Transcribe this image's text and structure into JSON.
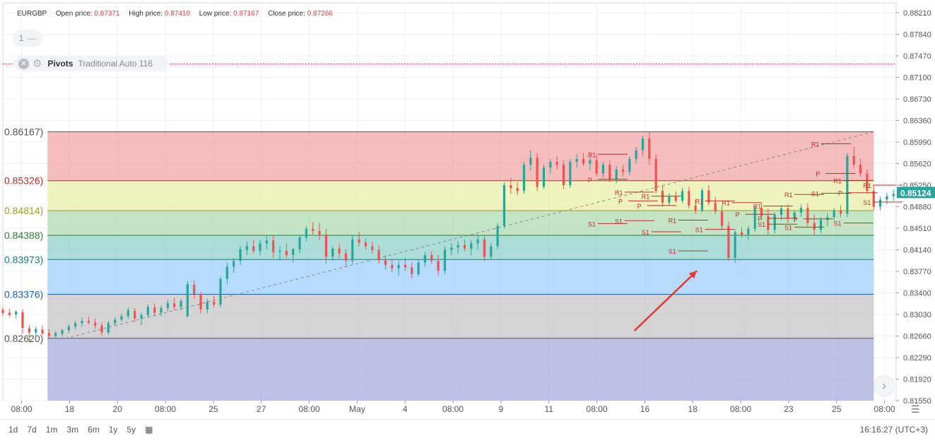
{
  "header": {
    "symbol": "EURGBP",
    "open_label": "Open price:",
    "open_value": "0.87371",
    "high_label": "High price:",
    "high_value": "0.87410",
    "low_label": "Low price:",
    "low_value": "0.87167",
    "close_label": "Close price:",
    "close_value": "0.87266"
  },
  "pane_pill": {
    "label": "1",
    "icon": "minus-icon"
  },
  "indicator": {
    "name": "Pivots",
    "args": "Traditional Auto 116",
    "close_icon": "close-icon",
    "settings_icon": "gear-icon"
  },
  "time_ranges": [
    "1d",
    "7d",
    "1m",
    "3m",
    "6m",
    "1y",
    "5y"
  ],
  "calendar_icon": "calendar-icon",
  "clock": "16:16:27 (UTC+3)",
  "scroll_icon": "chevron-right-icon",
  "axis_settings_icon": "sliders-icon",
  "colors": {
    "up": "#26a69a",
    "down": "#ef5350",
    "band_red": "#ef9a9a",
    "band_yellow": "#e6ee9c",
    "band_green": "#a5d6a7",
    "band_teal": "#80cbc4",
    "band_blue": "#90caf9",
    "band_gray": "#bdbdbd",
    "band_purple": "#9fa8da",
    "arrow": "#e53935",
    "pivot_line": "#c62828"
  },
  "chart_data": {
    "type": "candlestick",
    "symbol": "EURGBP",
    "y_ticks": [
      "0.88210",
      "0.87840",
      "0.87470",
      "0.87100",
      "0.86730",
      "0.86360",
      "0.85990",
      "0.85620",
      "0.85250",
      "0.84880",
      "0.84510",
      "0.84140",
      "0.83770",
      "0.83400",
      "0.83030",
      "0.82660",
      "0.82290",
      "0.81920",
      "0.81550"
    ],
    "ylim": [
      0.8155,
      0.8821
    ],
    "x_ticks": [
      "08:00",
      "18",
      "20",
      "08:00",
      "25",
      "27",
      "08:00",
      "May",
      "4",
      "08:00",
      "9",
      "11",
      "08:00",
      "16",
      "18",
      "08:00",
      "23",
      "25",
      "08:00"
    ],
    "current_price": "0.85124",
    "high_line": 0.8733,
    "fib_levels": [
      {
        "label": "0.86167)",
        "value": 0.86167,
        "color": "#555555"
      },
      {
        "label": "0.85326)",
        "value": 0.85326,
        "color": "#c62828"
      },
      {
        "label": "0.84814)",
        "value": 0.84814,
        "color": "#9e9d24"
      },
      {
        "label": "0.84388)",
        "value": 0.84388,
        "color": "#2e7d32"
      },
      {
        "label": "0.83973)",
        "value": 0.83973,
        "color": "#00897b"
      },
      {
        "label": "0.83376)",
        "value": 0.83376,
        "color": "#1565c0"
      },
      {
        "label": "0.82620)",
        "value": 0.8262,
        "color": "#555555"
      }
    ],
    "pivot_labels": [
      {
        "text": "R1",
        "x": 0.655,
        "value": 0.8578
      },
      {
        "text": "P",
        "x": 0.655,
        "value": 0.8535
      },
      {
        "text": "S1",
        "x": 0.655,
        "value": 0.8459
      },
      {
        "text": "R1",
        "x": 0.685,
        "value": 0.8513
      },
      {
        "text": "P",
        "x": 0.689,
        "value": 0.8498
      },
      {
        "text": "S1",
        "x": 0.685,
        "value": 0.8464
      },
      {
        "text": "R1",
        "x": 0.715,
        "value": 0.8506
      },
      {
        "text": "P",
        "x": 0.71,
        "value": 0.849
      },
      {
        "text": "S1",
        "x": 0.715,
        "value": 0.8445
      },
      {
        "text": "R1",
        "x": 0.745,
        "value": 0.8465
      },
      {
        "text": "S1",
        "x": 0.745,
        "value": 0.8412
      },
      {
        "text": "R1",
        "x": 0.775,
        "value": 0.8498
      },
      {
        "text": "S1",
        "x": 0.775,
        "value": 0.8449
      },
      {
        "text": "R1",
        "x": 0.805,
        "value": 0.8495
      },
      {
        "text": "P",
        "x": 0.82,
        "value": 0.8475
      },
      {
        "text": "R1",
        "x": 0.84,
        "value": 0.8489
      },
      {
        "text": "P",
        "x": 0.845,
        "value": 0.8468
      },
      {
        "text": "S1",
        "x": 0.845,
        "value": 0.8458
      },
      {
        "text": "S1",
        "x": 0.875,
        "value": 0.8453
      },
      {
        "text": "R1",
        "x": 0.875,
        "value": 0.8509
      },
      {
        "text": "P",
        "x": 0.885,
        "value": 0.8467
      },
      {
        "text": "R1",
        "x": 0.905,
        "value": 0.8596
      },
      {
        "text": "S1",
        "x": 0.905,
        "value": 0.8511
      },
      {
        "text": "P",
        "x": 0.91,
        "value": 0.8545
      },
      {
        "text": "R1",
        "x": 0.93,
        "value": 0.8533
      },
      {
        "text": "P",
        "x": 0.935,
        "value": 0.8512
      },
      {
        "text": "S1",
        "x": 0.93,
        "value": 0.846
      },
      {
        "text": "R1",
        "x": 0.963,
        "value": 0.8525
      },
      {
        "text": "S1",
        "x": 0.963,
        "value": 0.8496
      }
    ],
    "candles": [
      [
        0.8311,
        0.8315,
        0.83,
        0.8305
      ],
      [
        0.8306,
        0.8312,
        0.8298,
        0.8302
      ],
      [
        0.8303,
        0.831,
        0.8296,
        0.8308
      ],
      [
        0.8307,
        0.8312,
        0.827,
        0.828
      ],
      [
        0.8279,
        0.8285,
        0.8255,
        0.8272
      ],
      [
        0.8272,
        0.8282,
        0.8265,
        0.8278
      ],
      [
        0.8277,
        0.8284,
        0.8268,
        0.827
      ],
      [
        0.8271,
        0.8278,
        0.8263,
        0.8266
      ],
      [
        0.8266,
        0.8274,
        0.8261,
        0.8271
      ],
      [
        0.827,
        0.8278,
        0.8265,
        0.8276
      ],
      [
        0.8276,
        0.8286,
        0.8271,
        0.8282
      ],
      [
        0.8282,
        0.8292,
        0.8277,
        0.8288
      ],
      [
        0.8288,
        0.8298,
        0.8282,
        0.8292
      ],
      [
        0.8292,
        0.83,
        0.8286,
        0.8289
      ],
      [
        0.8289,
        0.8296,
        0.8278,
        0.8284
      ],
      [
        0.8284,
        0.829,
        0.8266,
        0.8272
      ],
      [
        0.8272,
        0.8292,
        0.8268,
        0.8288
      ],
      [
        0.8288,
        0.8298,
        0.8284,
        0.8294
      ],
      [
        0.8294,
        0.8304,
        0.829,
        0.83
      ],
      [
        0.83,
        0.8315,
        0.8295,
        0.831
      ],
      [
        0.8309,
        0.8314,
        0.829,
        0.8296
      ],
      [
        0.8296,
        0.8306,
        0.8285,
        0.8302
      ],
      [
        0.8302,
        0.832,
        0.8298,
        0.8316
      ],
      [
        0.8315,
        0.8322,
        0.83,
        0.8306
      ],
      [
        0.8306,
        0.8318,
        0.83,
        0.8314
      ],
      [
        0.8314,
        0.8328,
        0.8308,
        0.8322
      ],
      [
        0.8322,
        0.8332,
        0.831,
        0.8316
      ],
      [
        0.8316,
        0.833,
        0.831,
        0.8326
      ],
      [
        0.83,
        0.836,
        0.8298,
        0.8355
      ],
      [
        0.8354,
        0.8362,
        0.833,
        0.8338
      ],
      [
        0.8338,
        0.8342,
        0.8305,
        0.8312
      ],
      [
        0.8312,
        0.833,
        0.8305,
        0.8325
      ],
      [
        0.8325,
        0.8335,
        0.8315,
        0.832
      ],
      [
        0.832,
        0.8368,
        0.8315,
        0.8364
      ],
      [
        0.8364,
        0.8392,
        0.8355,
        0.8385
      ],
      [
        0.8385,
        0.84,
        0.8375,
        0.8395
      ],
      [
        0.8395,
        0.842,
        0.8388,
        0.8415
      ],
      [
        0.8414,
        0.8428,
        0.8405,
        0.842
      ],
      [
        0.842,
        0.8432,
        0.8408,
        0.8412
      ],
      [
        0.8412,
        0.843,
        0.8405,
        0.8425
      ],
      [
        0.8425,
        0.8438,
        0.8415,
        0.843
      ],
      [
        0.843,
        0.844,
        0.84,
        0.841
      ],
      [
        0.841,
        0.842,
        0.8395,
        0.8412
      ],
      [
        0.8412,
        0.8425,
        0.84,
        0.8405
      ],
      [
        0.8405,
        0.8418,
        0.8392,
        0.8415
      ],
      [
        0.8415,
        0.844,
        0.8408,
        0.8435
      ],
      [
        0.8435,
        0.8455,
        0.8428,
        0.845
      ],
      [
        0.845,
        0.8462,
        0.844,
        0.8446
      ],
      [
        0.8446,
        0.846,
        0.843,
        0.844
      ],
      [
        0.844,
        0.845,
        0.839,
        0.8402
      ],
      [
        0.8402,
        0.842,
        0.8395,
        0.8416
      ],
      [
        0.8416,
        0.8425,
        0.84,
        0.8408
      ],
      [
        0.8408,
        0.8415,
        0.8385,
        0.8395
      ],
      [
        0.8395,
        0.844,
        0.839,
        0.8432
      ],
      [
        0.8432,
        0.8445,
        0.842,
        0.8426
      ],
      [
        0.8426,
        0.8434,
        0.8415,
        0.842
      ],
      [
        0.842,
        0.8428,
        0.8408,
        0.8414
      ],
      [
        0.8414,
        0.8422,
        0.839,
        0.8396
      ],
      [
        0.8396,
        0.8405,
        0.838,
        0.8388
      ],
      [
        0.8388,
        0.8398,
        0.8375,
        0.8382
      ],
      [
        0.8382,
        0.8395,
        0.837,
        0.8388
      ],
      [
        0.8388,
        0.84,
        0.8378,
        0.8384
      ],
      [
        0.8384,
        0.8392,
        0.8365,
        0.8372
      ],
      [
        0.8372,
        0.8398,
        0.8368,
        0.8392
      ],
      [
        0.8392,
        0.841,
        0.8385,
        0.8405
      ],
      [
        0.8405,
        0.8412,
        0.839,
        0.8395
      ],
      [
        0.8395,
        0.8405,
        0.837,
        0.8378
      ],
      [
        0.8378,
        0.842,
        0.8372,
        0.8414
      ],
      [
        0.8414,
        0.8425,
        0.8405,
        0.8418
      ],
      [
        0.8418,
        0.8428,
        0.8408,
        0.8422
      ],
      [
        0.8422,
        0.8432,
        0.8412,
        0.8416
      ],
      [
        0.8416,
        0.843,
        0.8405,
        0.8425
      ],
      [
        0.8425,
        0.844,
        0.8415,
        0.8432
      ],
      [
        0.8432,
        0.844,
        0.8395,
        0.8402
      ],
      [
        0.8402,
        0.8425,
        0.8398,
        0.842
      ],
      [
        0.842,
        0.846,
        0.8415,
        0.8455
      ],
      [
        0.8455,
        0.853,
        0.845,
        0.8525
      ],
      [
        0.8525,
        0.8538,
        0.851,
        0.852
      ],
      [
        0.852,
        0.853,
        0.8508,
        0.8515
      ],
      [
        0.8515,
        0.8565,
        0.851,
        0.856
      ],
      [
        0.856,
        0.8585,
        0.855,
        0.8572
      ],
      [
        0.8572,
        0.858,
        0.8515,
        0.8522
      ],
      [
        0.8522,
        0.856,
        0.8518,
        0.8555
      ],
      [
        0.8555,
        0.857,
        0.8545,
        0.8565
      ],
      [
        0.8565,
        0.8575,
        0.8552,
        0.856
      ],
      [
        0.856,
        0.8568,
        0.8518,
        0.8525
      ],
      [
        0.8525,
        0.857,
        0.852,
        0.8565
      ],
      [
        0.8565,
        0.8578,
        0.8555,
        0.857
      ],
      [
        0.857,
        0.858,
        0.8558,
        0.8562
      ],
      [
        0.8562,
        0.8575,
        0.855,
        0.8568
      ],
      [
        0.8568,
        0.8578,
        0.854,
        0.8545
      ],
      [
        0.8545,
        0.8565,
        0.8538,
        0.856
      ],
      [
        0.856,
        0.8568,
        0.853,
        0.8535
      ],
      [
        0.8535,
        0.8558,
        0.8528,
        0.8552
      ],
      [
        0.8552,
        0.856,
        0.854,
        0.8548
      ],
      [
        0.8548,
        0.8575,
        0.8542,
        0.857
      ],
      [
        0.857,
        0.859,
        0.8562,
        0.8585
      ],
      [
        0.8585,
        0.861,
        0.8575,
        0.8605
      ],
      [
        0.8605,
        0.8617,
        0.856,
        0.857
      ],
      [
        0.857,
        0.8578,
        0.851,
        0.8515
      ],
      [
        0.8515,
        0.8525,
        0.8488,
        0.8495
      ],
      [
        0.8495,
        0.8512,
        0.849,
        0.8505
      ],
      [
        0.8505,
        0.8515,
        0.8495,
        0.8498
      ],
      [
        0.8498,
        0.852,
        0.8494,
        0.8515
      ],
      [
        0.8515,
        0.8522,
        0.8485,
        0.849
      ],
      [
        0.849,
        0.85,
        0.8475,
        0.8482
      ],
      [
        0.8482,
        0.852,
        0.8478,
        0.8516
      ],
      [
        0.8516,
        0.8525,
        0.849,
        0.8495
      ],
      [
        0.8495,
        0.8505,
        0.8475,
        0.848
      ],
      [
        0.848,
        0.849,
        0.845,
        0.8455
      ],
      [
        0.8455,
        0.8462,
        0.8395,
        0.84
      ],
      [
        0.84,
        0.8448,
        0.8392,
        0.8444
      ],
      [
        0.8444,
        0.8452,
        0.8435,
        0.844
      ],
      [
        0.844,
        0.8455,
        0.843,
        0.845
      ],
      [
        0.845,
        0.849,
        0.8445,
        0.8486
      ],
      [
        0.8486,
        0.8495,
        0.8465,
        0.8472
      ],
      [
        0.8472,
        0.8485,
        0.844,
        0.8448
      ],
      [
        0.8448,
        0.8478,
        0.8442,
        0.8474
      ],
      [
        0.8474,
        0.849,
        0.8465,
        0.8485
      ],
      [
        0.8485,
        0.8492,
        0.846,
        0.8468
      ],
      [
        0.8468,
        0.8482,
        0.8462,
        0.8478
      ],
      [
        0.8478,
        0.8492,
        0.847,
        0.8486
      ],
      [
        0.8486,
        0.8494,
        0.8455,
        0.846
      ],
      [
        0.846,
        0.8475,
        0.844,
        0.8448
      ],
      [
        0.8448,
        0.847,
        0.8442,
        0.8465
      ],
      [
        0.8465,
        0.8478,
        0.8455,
        0.847
      ],
      [
        0.847,
        0.8486,
        0.8464,
        0.8482
      ],
      [
        0.8482,
        0.849,
        0.847,
        0.8476
      ],
      [
        0.8476,
        0.858,
        0.847,
        0.8575
      ],
      [
        0.8575,
        0.859,
        0.8555,
        0.856
      ],
      [
        0.856,
        0.857,
        0.854,
        0.8545
      ],
      [
        0.8545,
        0.8552,
        0.851,
        0.8515
      ],
      [
        0.8515,
        0.8525,
        0.8482,
        0.8488
      ],
      [
        0.8488,
        0.8505,
        0.8482,
        0.85
      ],
      [
        0.85,
        0.8512,
        0.8492,
        0.8506
      ],
      [
        0.8506,
        0.8518,
        0.8498,
        0.851
      ]
    ],
    "trend_line": {
      "from": [
        0.07,
        0.8262
      ],
      "to": [
        1.0,
        0.86167
      ]
    },
    "arrow": {
      "from": [
        0.707,
        0.8275
      ],
      "to": [
        0.777,
        0.8378
      ]
    }
  }
}
